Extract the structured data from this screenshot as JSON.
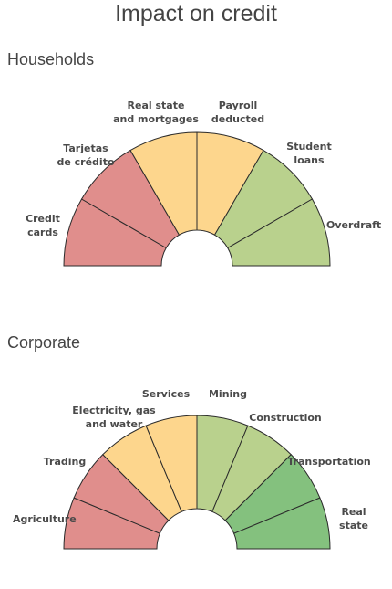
{
  "title": "Impact on credit",
  "chart_data": [
    {
      "type": "pie",
      "subtitle": "Households",
      "colors": {
        "red": "#e08e8c",
        "yellow": "#fdd68d",
        "lightgreen": "#b9d18d",
        "green": "#84c17e"
      },
      "segments": [
        {
          "label": [
            "Credit",
            "cards"
          ],
          "value": 1,
          "color": "red"
        },
        {
          "label": [
            "Tarjetas",
            "de crédito"
          ],
          "value": 1,
          "color": "red"
        },
        {
          "label": [
            "Real state",
            "and mortgages"
          ],
          "value": 1,
          "color": "yellow"
        },
        {
          "label": [
            "Payroll",
            "deducted"
          ],
          "value": 1,
          "color": "yellow"
        },
        {
          "label": [
            "Student",
            "loans"
          ],
          "value": 1,
          "color": "lightgreen"
        },
        {
          "label": [
            "Overdraft"
          ],
          "value": 1,
          "color": "lightgreen"
        }
      ]
    },
    {
      "type": "pie",
      "subtitle": "Corporate",
      "colors": {
        "red": "#e08e8c",
        "yellow": "#fdd68d",
        "lightgreen": "#b9d18d",
        "green": "#84c17e"
      },
      "segments": [
        {
          "label": [
            "Agriculture"
          ],
          "value": 1,
          "color": "red"
        },
        {
          "label": [
            "Trading"
          ],
          "value": 1,
          "color": "red"
        },
        {
          "label": [
            "Electricity, gas",
            "and water"
          ],
          "value": 1,
          "color": "yellow"
        },
        {
          "label": [
            "Services"
          ],
          "value": 1,
          "color": "yellow"
        },
        {
          "label": [
            "Mining"
          ],
          "value": 1,
          "color": "lightgreen"
        },
        {
          "label": [
            "Construction"
          ],
          "value": 1,
          "color": "lightgreen"
        },
        {
          "label": [
            "Transportation"
          ],
          "value": 1,
          "color": "green"
        },
        {
          "label": [
            "Real",
            "state"
          ],
          "value": 1,
          "color": "green"
        }
      ]
    }
  ]
}
